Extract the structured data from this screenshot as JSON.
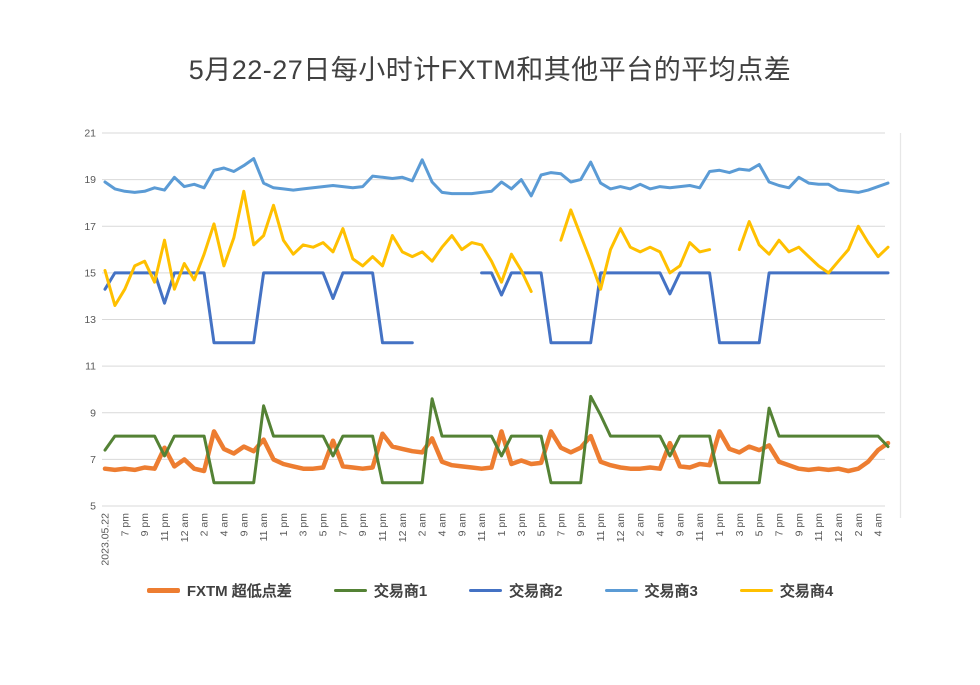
{
  "title": "5月22-27日每小时计FXTM和其他平台的平均点差",
  "chart_data": {
    "type": "line",
    "title": "5月22-27日每小时计FXTM和其他平台的平均点差",
    "grid": true,
    "legend_position": "bottom",
    "y_axis": {
      "min": 5,
      "max": 21,
      "tick_step": 2,
      "ticks": [
        5,
        7,
        9,
        11,
        13,
        15,
        17,
        19,
        21
      ]
    },
    "x_axis": {
      "label_every_n_points": 2,
      "labels": [
        "2023.05.22",
        "7 pm",
        "9 pm",
        "11 pm",
        "12 am",
        "2 am",
        "4 am",
        "9 am",
        "11 am",
        "1 pm",
        "3 pm",
        "5 pm",
        "7 pm",
        "9 pm",
        "11 pm",
        "12 am",
        "2 am",
        "4 am",
        "9 am",
        "11 am",
        "1 pm",
        "3 pm",
        "5 pm",
        "7 pm",
        "9 pm",
        "11 pm",
        "12 am",
        "2 am",
        "4 am",
        "9 am",
        "11 am",
        "1 pm",
        "3 pm",
        "5 pm",
        "7 pm",
        "9 pm",
        "11 pm",
        "12 am",
        "2 am",
        "4 am"
      ]
    },
    "series": [
      {
        "name": "FXTM 超低点差",
        "color": "#ED7D31",
        "line_width": 4.5,
        "values": [
          6.6,
          6.55,
          6.6,
          6.55,
          6.65,
          6.6,
          7.5,
          6.7,
          7.0,
          6.6,
          6.5,
          8.2,
          7.45,
          7.25,
          7.55,
          7.35,
          7.85,
          7.0,
          6.8,
          6.7,
          6.6,
          6.6,
          6.65,
          7.8,
          6.7,
          6.65,
          6.6,
          6.65,
          8.1,
          7.55,
          7.45,
          7.35,
          7.3,
          7.9,
          6.9,
          6.75,
          6.7,
          6.65,
          6.6,
          6.65,
          8.2,
          6.8,
          6.95,
          6.8,
          6.85,
          8.2,
          7.5,
          7.3,
          7.5,
          8.0,
          6.9,
          6.75,
          6.65,
          6.6,
          6.6,
          6.65,
          6.6,
          7.7,
          6.7,
          6.65,
          6.8,
          6.75,
          8.2,
          7.45,
          7.3,
          7.55,
          7.4,
          7.6,
          6.9,
          6.75,
          6.6,
          6.55,
          6.6,
          6.55,
          6.6,
          6.5,
          6.6,
          6.9,
          7.4,
          7.7
        ]
      },
      {
        "name": "交易商1",
        "color": "#548235",
        "line_width": 3,
        "values": [
          7.4,
          8,
          8,
          8,
          8,
          8,
          7.15,
          8,
          8,
          8,
          8,
          6,
          6,
          6,
          6,
          6,
          9.3,
          8,
          8,
          8,
          8,
          8,
          8,
          7.15,
          8,
          8,
          8,
          8,
          6,
          6,
          6,
          6,
          6,
          9.6,
          8,
          8,
          8,
          8,
          8,
          8,
          7.15,
          8,
          8,
          8,
          8,
          6,
          6,
          6,
          6,
          9.7,
          8.9,
          8,
          8,
          8,
          8,
          8,
          8,
          7.15,
          8,
          8,
          8,
          8,
          6,
          6,
          6,
          6,
          6,
          9.2,
          8,
          8,
          8,
          8,
          8,
          8,
          8,
          8,
          8,
          8,
          8,
          7.55
        ]
      },
      {
        "name": "交易商2",
        "color": "#4472C4",
        "line_width": 3,
        "values": [
          14.3,
          15,
          15,
          15,
          15,
          15,
          13.7,
          15,
          15,
          15,
          15,
          12,
          12,
          12,
          12,
          12,
          15,
          15,
          15,
          15,
          15,
          15,
          15,
          13.9,
          15,
          15,
          15,
          15,
          12,
          12,
          12,
          12,
          null,
          null,
          null,
          null,
          null,
          null,
          15,
          15,
          14.05,
          15,
          15,
          15,
          15,
          12,
          12,
          12,
          12,
          12,
          15,
          15,
          15,
          15,
          15,
          15,
          15,
          14.1,
          15,
          15,
          15,
          15,
          12,
          12,
          12,
          12,
          12,
          15,
          15,
          15,
          15,
          15,
          15,
          15,
          15,
          15,
          15,
          15,
          15,
          15,
          null
        ]
      },
      {
        "name": "交易商3",
        "color": "#5B9BD5",
        "line_width": 3,
        "values": [
          18.9,
          18.6,
          18.5,
          18.45,
          18.5,
          18.65,
          18.55,
          19.1,
          18.7,
          18.8,
          18.65,
          19.4,
          19.5,
          19.35,
          19.6,
          19.9,
          18.85,
          18.65,
          18.6,
          18.55,
          18.6,
          18.65,
          18.7,
          18.75,
          18.7,
          18.65,
          18.7,
          19.15,
          19.1,
          19.05,
          19.1,
          18.95,
          19.85,
          18.9,
          18.45,
          18.4,
          18.4,
          18.4,
          18.45,
          18.5,
          18.9,
          18.6,
          19.0,
          18.3,
          19.2,
          19.3,
          19.25,
          18.9,
          19.0,
          19.75,
          18.85,
          18.6,
          18.7,
          18.6,
          18.8,
          18.6,
          18.7,
          18.65,
          18.7,
          18.75,
          18.65,
          19.35,
          19.4,
          19.3,
          19.45,
          19.4,
          19.65,
          18.9,
          18.75,
          18.65,
          19.1,
          18.85,
          18.8,
          18.8,
          18.55,
          18.5,
          18.45,
          18.55,
          18.7,
          18.85
        ]
      },
      {
        "name": "交易商4",
        "color": "#FFC000",
        "line_width": 3,
        "values": [
          15.1,
          13.6,
          14.3,
          15.3,
          15.5,
          14.6,
          16.4,
          14.3,
          15.4,
          14.7,
          15.8,
          17.1,
          15.3,
          16.5,
          18.5,
          16.2,
          16.6,
          17.9,
          16.4,
          15.8,
          16.2,
          16.1,
          16.3,
          15.9,
          16.9,
          15.6,
          15.3,
          15.7,
          15.3,
          16.6,
          15.9,
          15.7,
          15.9,
          15.5,
          16.1,
          16.6,
          16.0,
          16.3,
          16.2,
          15.5,
          14.6,
          15.8,
          15.1,
          14.2,
          null,
          null,
          16.4,
          17.7,
          16.6,
          15.5,
          14.3,
          16.0,
          16.9,
          16.1,
          15.9,
          16.1,
          15.9,
          15.0,
          15.3,
          16.3,
          15.9,
          16.0,
          null,
          null,
          16.0,
          17.2,
          16.2,
          15.8,
          16.4,
          15.9,
          16.1,
          15.7,
          15.3,
          15.0,
          15.5,
          16.0,
          17.0,
          16.3,
          15.7,
          16.1
        ]
      }
    ]
  }
}
